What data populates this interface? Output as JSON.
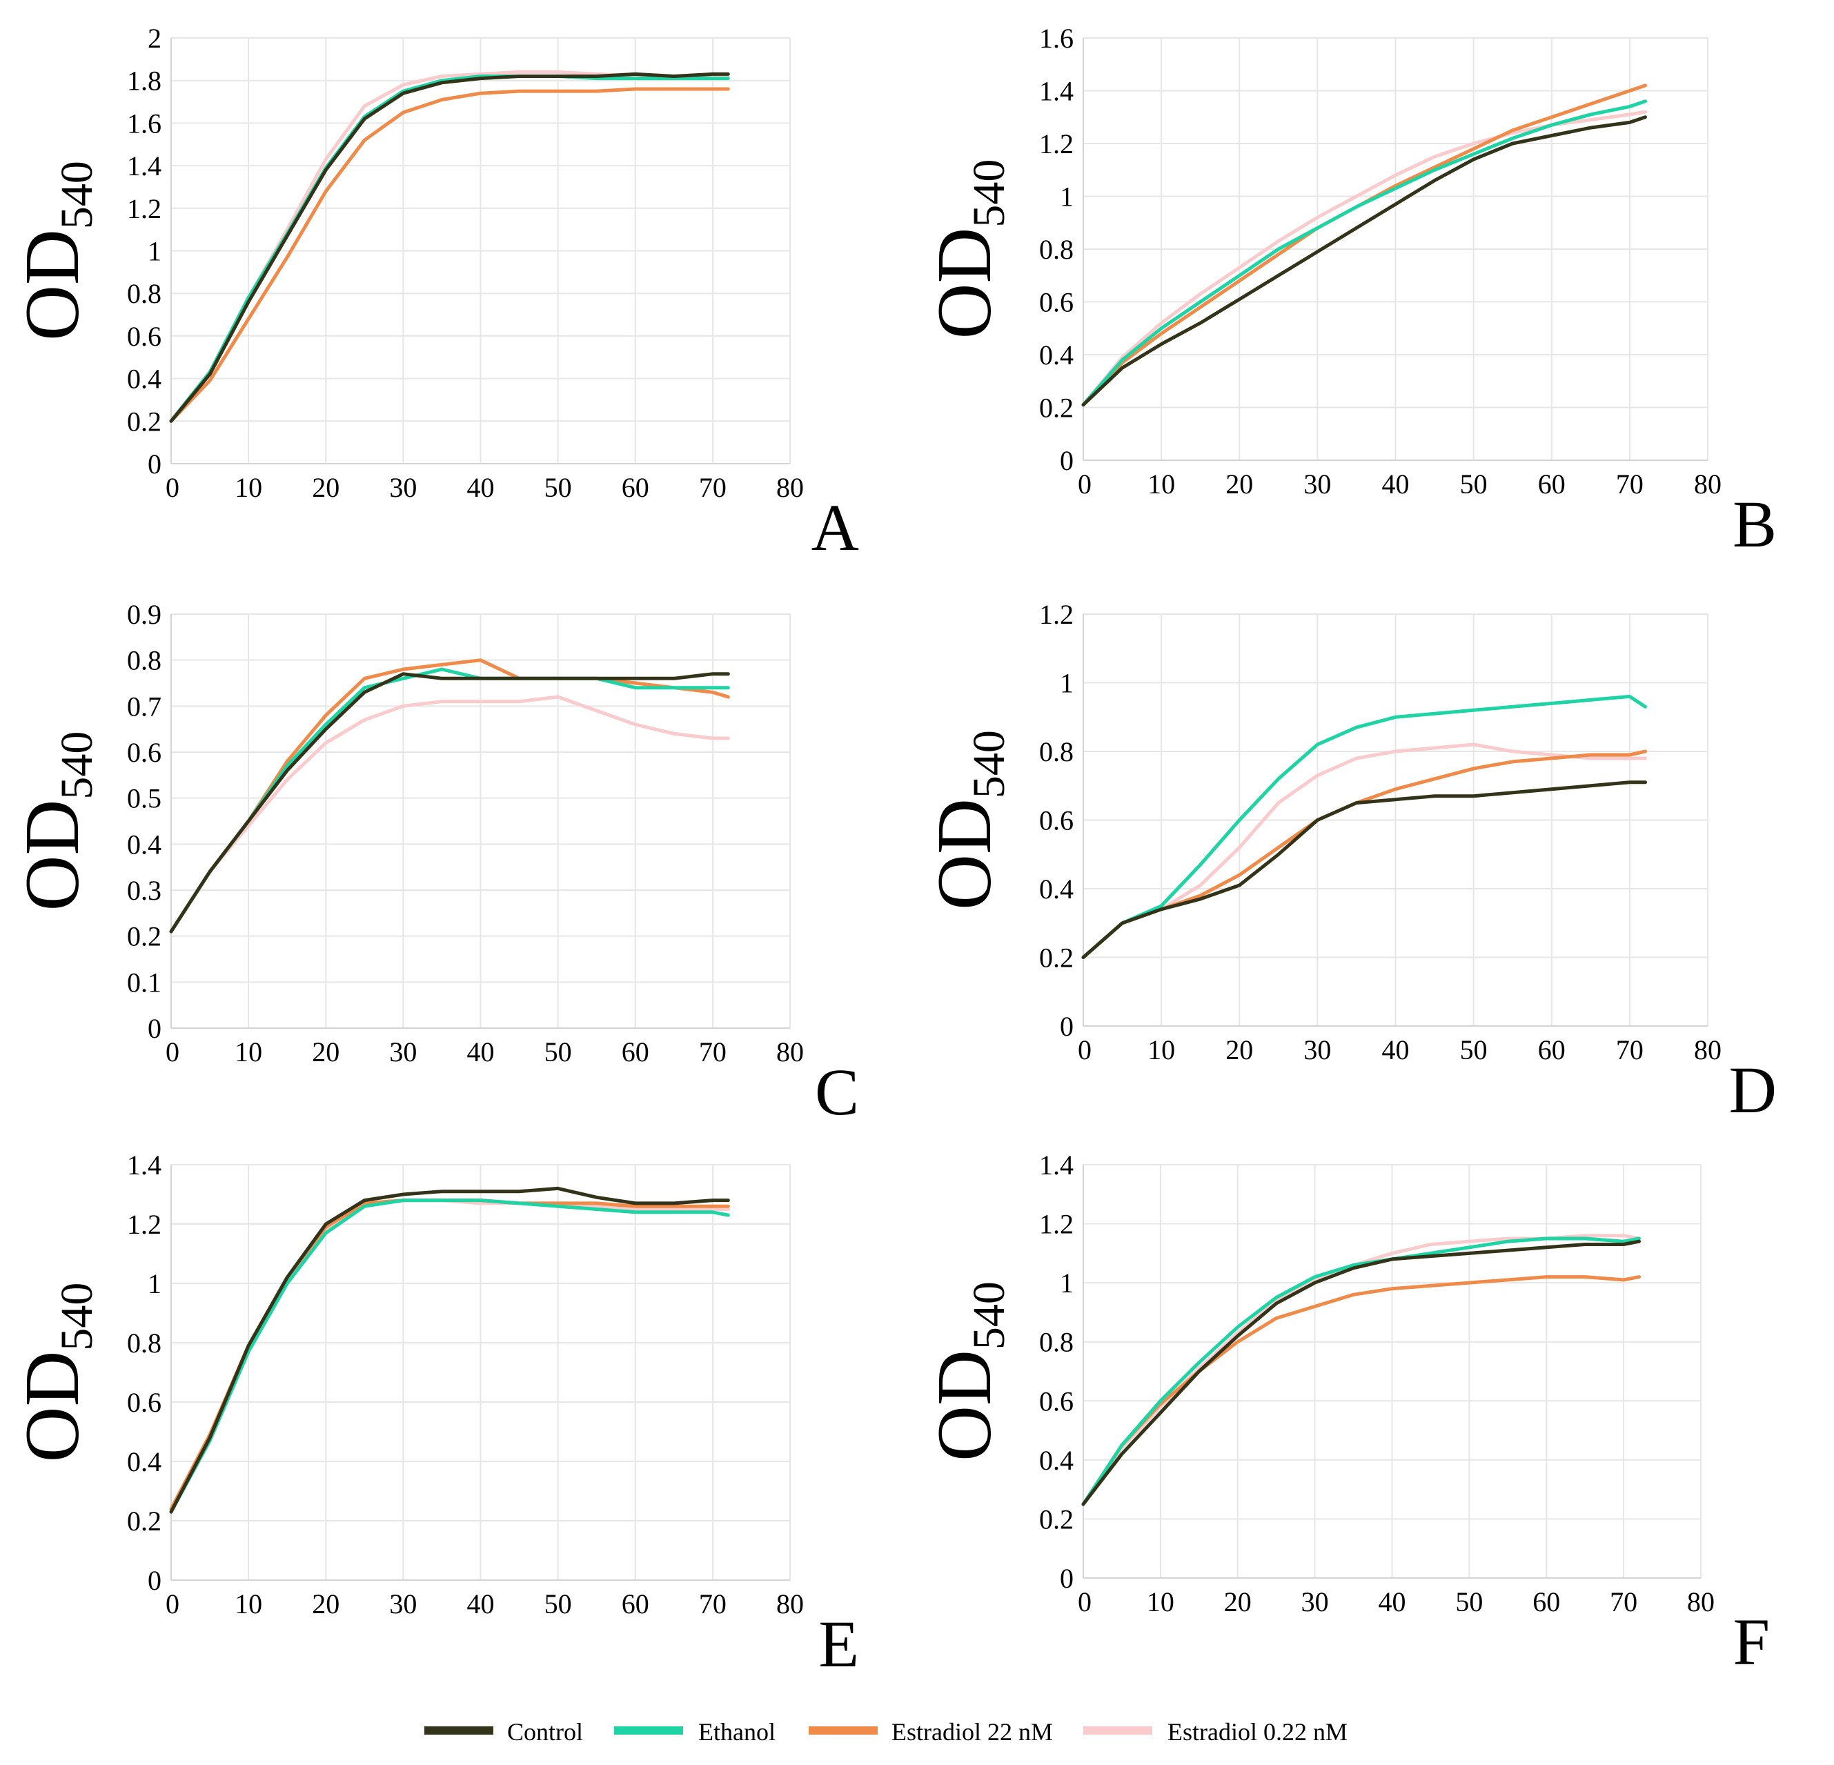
{
  "legend": [
    {
      "name": "Control",
      "color": "#333319"
    },
    {
      "name": "Ethanol",
      "color": "#1ED3A4"
    },
    {
      "name": "Estradiol 22 nM",
      "color": "#F08A49"
    },
    {
      "name": "Estradiol 0.22 nM",
      "color": "#F9CBCD"
    }
  ],
  "chart_data": [
    {
      "type": "line",
      "panel": "A",
      "ylabel": "OD",
      "ylabel_sub": "540",
      "xlim": [
        0,
        80
      ],
      "ylim": [
        0,
        2
      ],
      "xticks": [
        "0",
        "10",
        "20",
        "30",
        "40",
        "50",
        "60",
        "70",
        "80"
      ],
      "yticks": [
        "0",
        "0.2",
        "0.4",
        "0.6",
        "0.8",
        "1",
        "1.2",
        "1.4",
        "1.6",
        "1.8",
        "2"
      ],
      "x": [
        0,
        5,
        10,
        15,
        20,
        25,
        30,
        35,
        40,
        45,
        50,
        55,
        60,
        65,
        70,
        72
      ],
      "series": [
        {
          "name": "Control",
          "values": [
            0.2,
            0.42,
            0.76,
            1.07,
            1.38,
            1.62,
            1.74,
            1.79,
            1.81,
            1.82,
            1.82,
            1.82,
            1.83,
            1.82,
            1.83,
            1.83
          ]
        },
        {
          "name": "Ethanol",
          "values": [
            0.2,
            0.43,
            0.78,
            1.08,
            1.39,
            1.63,
            1.75,
            1.8,
            1.82,
            1.82,
            1.82,
            1.81,
            1.81,
            1.81,
            1.81,
            1.81
          ]
        },
        {
          "name": "Estradiol 22 nM",
          "values": [
            0.2,
            0.39,
            0.68,
            0.97,
            1.28,
            1.52,
            1.65,
            1.71,
            1.74,
            1.75,
            1.75,
            1.75,
            1.76,
            1.76,
            1.76,
            1.76
          ]
        },
        {
          "name": "Estradiol 0.22 nM",
          "values": [
            0.2,
            0.43,
            0.78,
            1.1,
            1.43,
            1.68,
            1.78,
            1.82,
            1.83,
            1.84,
            1.84,
            1.83,
            1.82,
            1.82,
            1.82,
            1.82
          ]
        }
      ]
    },
    {
      "type": "line",
      "panel": "B",
      "ylabel": "OD",
      "ylabel_sub": "540",
      "xlim": [
        0,
        80
      ],
      "ylim": [
        0,
        1.6
      ],
      "xticks": [
        "0",
        "10",
        "20",
        "30",
        "40",
        "50",
        "60",
        "70",
        "80"
      ],
      "yticks": [
        "0",
        "0.2",
        "0.4",
        "0.6",
        "0.8",
        "1",
        "1.2",
        "1.4",
        "1.6"
      ],
      "x": [
        0,
        5,
        10,
        15,
        20,
        25,
        30,
        35,
        40,
        45,
        50,
        55,
        60,
        65,
        70,
        72
      ],
      "series": [
        {
          "name": "Control",
          "values": [
            0.21,
            0.35,
            0.44,
            0.52,
            0.61,
            0.7,
            0.79,
            0.88,
            0.97,
            1.06,
            1.14,
            1.2,
            1.23,
            1.26,
            1.28,
            1.3
          ]
        },
        {
          "name": "Ethanol",
          "values": [
            0.21,
            0.38,
            0.5,
            0.6,
            0.7,
            0.8,
            0.88,
            0.96,
            1.03,
            1.1,
            1.16,
            1.22,
            1.27,
            1.31,
            1.34,
            1.36
          ]
        },
        {
          "name": "Estradiol 22 nM",
          "values": [
            0.21,
            0.37,
            0.48,
            0.58,
            0.68,
            0.78,
            0.88,
            0.96,
            1.04,
            1.11,
            1.18,
            1.25,
            1.3,
            1.35,
            1.4,
            1.42
          ]
        },
        {
          "name": "Estradiol 0.22 nM",
          "values": [
            0.21,
            0.39,
            0.52,
            0.63,
            0.73,
            0.83,
            0.92,
            1.0,
            1.08,
            1.15,
            1.2,
            1.24,
            1.27,
            1.29,
            1.31,
            1.32
          ]
        }
      ]
    },
    {
      "type": "line",
      "panel": "C",
      "ylabel": "OD",
      "ylabel_sub": "540",
      "xlim": [
        0,
        80
      ],
      "ylim": [
        0,
        0.9
      ],
      "xticks": [
        "0",
        "10",
        "20",
        "30",
        "40",
        "50",
        "60",
        "70",
        "80"
      ],
      "yticks": [
        "0",
        "0.1",
        "0.2",
        "0.3",
        "0.4",
        "0.5",
        "0.6",
        "0.7",
        "0.8",
        "0.9"
      ],
      "x": [
        0,
        5,
        10,
        15,
        20,
        25,
        30,
        35,
        40,
        45,
        50,
        55,
        60,
        65,
        70,
        72
      ],
      "series": [
        {
          "name": "Control",
          "values": [
            0.21,
            0.34,
            0.45,
            0.56,
            0.65,
            0.73,
            0.77,
            0.76,
            0.76,
            0.76,
            0.76,
            0.76,
            0.76,
            0.76,
            0.77,
            0.77
          ]
        },
        {
          "name": "Ethanol",
          "values": [
            0.21,
            0.34,
            0.45,
            0.57,
            0.66,
            0.74,
            0.76,
            0.78,
            0.76,
            0.76,
            0.76,
            0.76,
            0.74,
            0.74,
            0.74,
            0.74
          ]
        },
        {
          "name": "Estradiol 22 nM",
          "values": [
            0.21,
            0.34,
            0.45,
            0.58,
            0.68,
            0.76,
            0.78,
            0.79,
            0.8,
            0.76,
            0.76,
            0.76,
            0.75,
            0.74,
            0.73,
            0.72
          ]
        },
        {
          "name": "Estradiol 0.22 nM",
          "values": [
            0.21,
            0.34,
            0.44,
            0.54,
            0.62,
            0.67,
            0.7,
            0.71,
            0.71,
            0.71,
            0.72,
            0.69,
            0.66,
            0.64,
            0.63,
            0.63
          ]
        }
      ]
    },
    {
      "type": "line",
      "panel": "D",
      "ylabel": "OD",
      "ylabel_sub": "540",
      "xlim": [
        0,
        80
      ],
      "ylim": [
        0,
        1.2
      ],
      "xticks": [
        "0",
        "10",
        "20",
        "30",
        "40",
        "50",
        "60",
        "70",
        "80"
      ],
      "yticks": [
        "0",
        "0.2",
        "0.4",
        "0.6",
        "0.8",
        "1",
        "1.2"
      ],
      "x": [
        0,
        5,
        10,
        15,
        20,
        25,
        30,
        35,
        40,
        45,
        50,
        55,
        60,
        65,
        70,
        72
      ],
      "series": [
        {
          "name": "Control",
          "values": [
            0.2,
            0.3,
            0.34,
            0.37,
            0.41,
            0.5,
            0.6,
            0.65,
            0.66,
            0.67,
            0.67,
            0.68,
            0.69,
            0.7,
            0.71,
            0.71
          ]
        },
        {
          "name": "Ethanol",
          "values": [
            0.2,
            0.3,
            0.35,
            0.47,
            0.6,
            0.72,
            0.82,
            0.87,
            0.9,
            0.91,
            0.92,
            0.93,
            0.94,
            0.95,
            0.96,
            0.93
          ]
        },
        {
          "name": "Estradiol 22 nM",
          "values": [
            0.2,
            0.3,
            0.34,
            0.38,
            0.44,
            0.52,
            0.6,
            0.65,
            0.69,
            0.72,
            0.75,
            0.77,
            0.78,
            0.79,
            0.79,
            0.8
          ]
        },
        {
          "name": "Estradiol 0.22 nM",
          "values": [
            0.2,
            0.3,
            0.34,
            0.41,
            0.52,
            0.65,
            0.73,
            0.78,
            0.8,
            0.81,
            0.82,
            0.8,
            0.79,
            0.78,
            0.78,
            0.78
          ]
        }
      ]
    },
    {
      "type": "line",
      "panel": "E",
      "ylabel": "OD",
      "ylabel_sub": "540",
      "xlim": [
        0,
        80
      ],
      "ylim": [
        0,
        1.4
      ],
      "xticks": [
        "0",
        "10",
        "20",
        "30",
        "40",
        "50",
        "60",
        "70",
        "80"
      ],
      "yticks": [
        "0",
        "0.2",
        "0.4",
        "0.6",
        "0.8",
        "1",
        "1.2",
        "1.4"
      ],
      "x": [
        0,
        5,
        10,
        15,
        20,
        25,
        30,
        35,
        40,
        45,
        50,
        55,
        60,
        65,
        70,
        72
      ],
      "series": [
        {
          "name": "Control",
          "values": [
            0.23,
            0.48,
            0.79,
            1.02,
            1.2,
            1.28,
            1.3,
            1.31,
            1.31,
            1.31,
            1.32,
            1.29,
            1.27,
            1.27,
            1.28,
            1.28
          ]
        },
        {
          "name": "Ethanol",
          "values": [
            0.23,
            0.47,
            0.77,
            1.0,
            1.17,
            1.26,
            1.28,
            1.28,
            1.28,
            1.27,
            1.26,
            1.25,
            1.24,
            1.24,
            1.24,
            1.23
          ]
        },
        {
          "name": "Estradiol 22 nM",
          "values": [
            0.24,
            0.49,
            0.79,
            1.02,
            1.19,
            1.27,
            1.28,
            1.28,
            1.28,
            1.27,
            1.27,
            1.27,
            1.26,
            1.26,
            1.26,
            1.26
          ]
        },
        {
          "name": "Estradiol 0.22 nM",
          "values": [
            0.24,
            0.48,
            0.78,
            1.01,
            1.18,
            1.26,
            1.28,
            1.28,
            1.27,
            1.27,
            1.27,
            1.26,
            1.25,
            1.25,
            1.25,
            1.25
          ]
        }
      ]
    },
    {
      "type": "line",
      "panel": "F",
      "ylabel": "OD",
      "ylabel_sub": "540",
      "xlim": [
        0,
        80
      ],
      "ylim": [
        0,
        1.4
      ],
      "xticks": [
        "0",
        "10",
        "20",
        "30",
        "40",
        "50",
        "60",
        "70",
        "80"
      ],
      "yticks": [
        "0",
        "0.2",
        "0.4",
        "0.6",
        "0.8",
        "1",
        "1.2",
        "1.4"
      ],
      "x": [
        0,
        5,
        10,
        15,
        20,
        25,
        30,
        35,
        40,
        45,
        50,
        55,
        60,
        65,
        70,
        72
      ],
      "series": [
        {
          "name": "Control",
          "values": [
            0.25,
            0.42,
            0.56,
            0.7,
            0.82,
            0.93,
            1.0,
            1.05,
            1.08,
            1.09,
            1.1,
            1.11,
            1.12,
            1.13,
            1.13,
            1.14
          ]
        },
        {
          "name": "Ethanol",
          "values": [
            0.25,
            0.45,
            0.6,
            0.73,
            0.85,
            0.95,
            1.02,
            1.06,
            1.08,
            1.1,
            1.12,
            1.14,
            1.15,
            1.15,
            1.14,
            1.15
          ]
        },
        {
          "name": "Estradiol 22 nM",
          "values": [
            0.25,
            0.45,
            0.59,
            0.7,
            0.8,
            0.88,
            0.92,
            0.96,
            0.98,
            0.99,
            1.0,
            1.01,
            1.02,
            1.02,
            1.01,
            1.02
          ]
        },
        {
          "name": "Estradiol 0.22 nM",
          "values": [
            0.25,
            0.44,
            0.58,
            0.71,
            0.83,
            0.94,
            1.01,
            1.06,
            1.1,
            1.13,
            1.14,
            1.15,
            1.15,
            1.16,
            1.16,
            1.15
          ]
        }
      ]
    }
  ]
}
